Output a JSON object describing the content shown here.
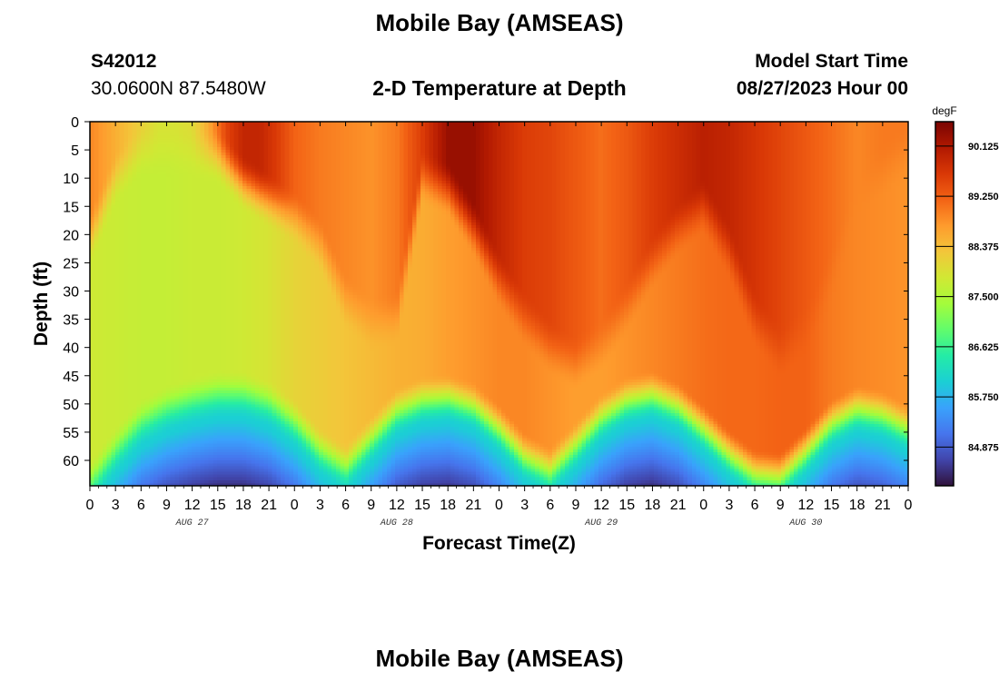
{
  "figure": {
    "title": "Mobile Bay (AMSEAS)",
    "station_id": "S42012",
    "coordinates": "30.0600N  87.5480W",
    "plot_title": "2-D Temperature at Depth",
    "model_label": "Model Start Time",
    "model_start": "08/27/2023 Hour 00",
    "bottom_title": "Mobile Bay (AMSEAS)"
  },
  "chart_data": {
    "type": "heatmap",
    "title": "2-D Temperature at Depth",
    "xlabel": "Forecast Time(Z)",
    "ylabel": "Depth (ft)",
    "xlim": [
      0,
      96
    ],
    "ylim": [
      0,
      64.5
    ],
    "y_inverted": true,
    "x_ticks": [
      0,
      3,
      6,
      9,
      12,
      15,
      18,
      21,
      24,
      27,
      30,
      33,
      36,
      39,
      42,
      45,
      48,
      51,
      54,
      57,
      60,
      63,
      66,
      69,
      72,
      75,
      78,
      81,
      84,
      87,
      90,
      93,
      96
    ],
    "x_tick_labels": [
      "0",
      "3",
      "6",
      "9",
      "12",
      "15",
      "18",
      "21",
      "0",
      "3",
      "6",
      "9",
      "12",
      "15",
      "18",
      "21",
      "0",
      "3",
      "6",
      "9",
      "12",
      "15",
      "18",
      "21",
      "0",
      "3",
      "6",
      "9",
      "12",
      "15",
      "18",
      "21",
      "0"
    ],
    "day_labels": [
      {
        "x": 12,
        "label": "AUG 27"
      },
      {
        "x": 36,
        "label": "AUG 28"
      },
      {
        "x": 60,
        "label": "AUG 29"
      },
      {
        "x": 84,
        "label": "AUG 30"
      }
    ],
    "y_ticks": [
      0,
      5,
      10,
      15,
      20,
      25,
      30,
      35,
      40,
      45,
      50,
      55,
      60
    ],
    "colorbar": {
      "unit": "degF",
      "min": 84.2,
      "max": 90.55,
      "tick_values": [
        90.125,
        89.25,
        88.375,
        87.5,
        86.625,
        85.75,
        84.875
      ],
      "tick_labels": [
        "90.125",
        "89.250",
        "88.375",
        "87.500",
        "86.625",
        "85.750",
        "84.875"
      ]
    },
    "colors": [
      "#30123b",
      "#4145ab",
      "#4675ed",
      "#39a2fc",
      "#1bcfd4",
      "#24eca6",
      "#61fc6c",
      "#a4fc3b",
      "#d1e834",
      "#f3c63a",
      "#fe9b2d",
      "#f36315",
      "#d93806",
      "#b11901",
      "#7a0402"
    ],
    "thermocline_depth_ft": {
      "x": [
        0,
        3,
        6,
        9,
        12,
        15,
        18,
        21,
        24,
        27,
        30,
        33,
        36,
        39,
        42,
        45,
        48,
        51,
        54,
        57,
        60,
        63,
        66,
        69,
        72,
        75,
        78,
        81,
        84,
        87,
        90,
        93,
        96
      ],
      "depth": [
        58,
        52,
        47,
        44.5,
        43,
        42,
        42,
        43.5,
        47,
        52,
        55,
        50,
        45,
        43,
        42.5,
        44,
        48,
        53,
        55.5,
        51,
        46,
        43,
        42,
        44,
        48,
        52.5,
        56,
        56.5,
        52,
        47,
        44.5,
        45.5,
        48
      ]
    },
    "surface_temp_degF": {
      "x": [
        0,
        4,
        8,
        10,
        12,
        14,
        16,
        18,
        20,
        22,
        24,
        27,
        30,
        33,
        36,
        39,
        42,
        45,
        48,
        51,
        54,
        57,
        60,
        63,
        66,
        69,
        72,
        75,
        78,
        81,
        84,
        87,
        90,
        93,
        96
      ],
      "value": [
        88.9,
        88.4,
        87.9,
        87.9,
        88.0,
        88.6,
        89.5,
        89.9,
        89.9,
        89.6,
        89.2,
        89.0,
        88.9,
        88.8,
        89.0,
        89.6,
        90.3,
        90.3,
        89.9,
        89.6,
        89.5,
        89.3,
        89.1,
        89.3,
        89.6,
        89.8,
        90.0,
        89.9,
        89.7,
        89.5,
        89.3,
        89.1,
        88.9,
        89.0,
        89.0
      ]
    },
    "upper_temp_degF": {
      "x": [
        0,
        3,
        6,
        9,
        12,
        15,
        18,
        21,
        24,
        27,
        30,
        33,
        36,
        39,
        42,
        45,
        48,
        51,
        54,
        57,
        60,
        63,
        66,
        69,
        72,
        75,
        78,
        81,
        84,
        87,
        90,
        93,
        96
      ],
      "value": [
        87.8,
        87.75,
        87.7,
        87.7,
        87.75,
        87.75,
        87.8,
        87.9,
        88.1,
        88.2,
        88.3,
        88.4,
        88.5,
        88.55,
        88.7,
        88.8,
        88.9,
        88.9,
        88.8,
        88.7,
        88.7,
        88.8,
        88.9,
        89.0,
        89.1,
        89.15,
        89.15,
        89.2,
        89.2,
        89.0,
        88.9,
        88.85,
        88.8
      ]
    },
    "warm_layer_depth_ft": {
      "x": [
        0,
        3,
        6,
        9,
        12,
        15,
        18,
        21,
        24,
        27,
        30,
        33,
        36,
        39,
        42,
        45,
        48,
        51,
        54,
        57,
        60,
        63,
        66,
        69,
        72,
        75,
        78,
        81,
        84,
        87,
        90,
        93,
        96
      ],
      "depth": [
        16,
        5,
        0,
        0,
        0,
        1,
        6,
        9,
        12,
        17,
        27,
        31,
        30,
        5,
        7,
        14,
        23,
        30,
        35,
        38,
        35,
        28,
        20,
        14,
        10,
        18,
        30,
        36,
        32,
        22,
        8,
        4,
        0
      ]
    },
    "bottom_temp_degF": 84.4
  }
}
